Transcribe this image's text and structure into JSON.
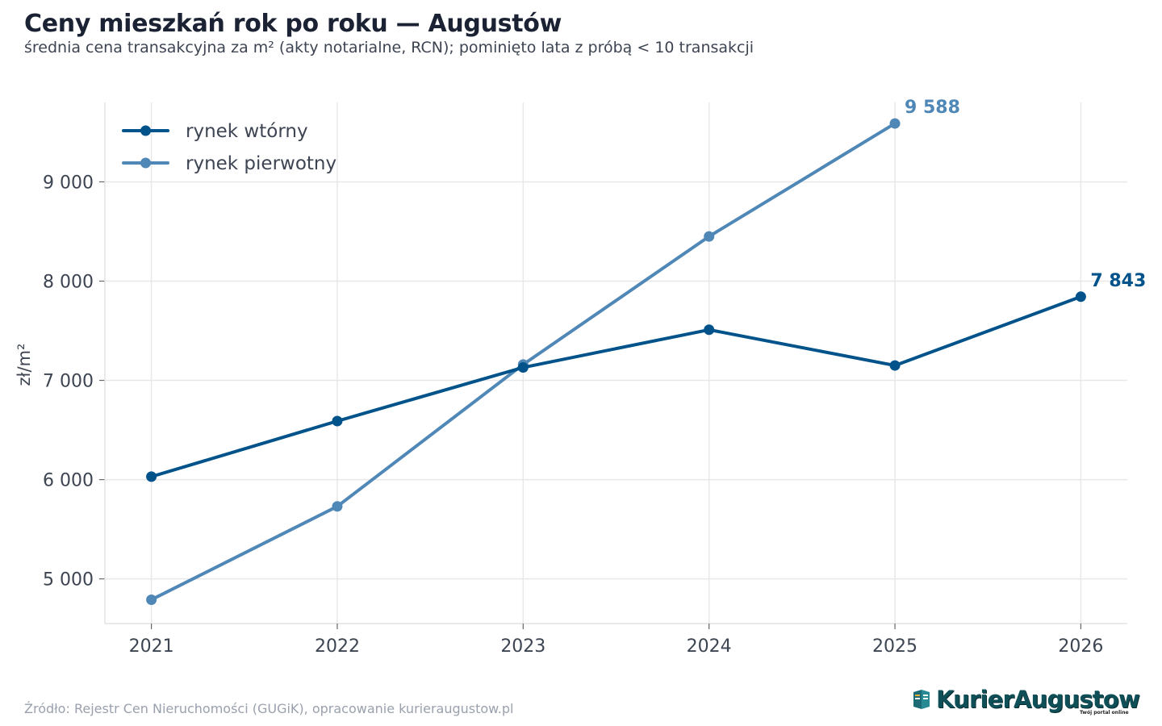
{
  "header": {
    "title": "Ceny mieszkań rok po roku — Augustów",
    "subtitle": "średnia cena transakcyjna za m² (akty notarialne, RCN); pominięto lata z próbą < 10 transakcji"
  },
  "footer": {
    "source": "Źródło: Rejestr Cen Nieruchomości (GUGiK), opracowanie kurieraugustow.pl",
    "logo_text": "KurierAugustow",
    "logo_tagline": "Twój portal online"
  },
  "chart_data": {
    "type": "line",
    "title": "Ceny mieszkań rok po roku — Augustów",
    "subtitle": "średnia cena transakcyjna za m² (akty notarialne, RCN); pominięto lata z próbą < 10 transakcji",
    "xlabel": "",
    "ylabel": "zł/m²",
    "x": [
      2021,
      2022,
      2023,
      2024,
      2025,
      2026
    ],
    "x_tick_labels": [
      "2021",
      "2022",
      "2023",
      "2024",
      "2025",
      "2026"
    ],
    "xlim": [
      2020.75,
      2026.25
    ],
    "ylim": [
      4550,
      9800
    ],
    "y_ticks": [
      5000,
      6000,
      7000,
      8000,
      9000
    ],
    "y_tick_labels": [
      "5 000",
      "6 000",
      "7 000",
      "8 000",
      "9 000"
    ],
    "grid": true,
    "legend_position": "top-left",
    "series": [
      {
        "name": "rynek wtórny",
        "color": "#00538a",
        "values": [
          6030,
          6590,
          7130,
          7510,
          7150,
          7843
        ],
        "end_label": "7 843"
      },
      {
        "name": "rynek pierwotny",
        "color": "#4f87b7",
        "values": [
          4790,
          5730,
          7160,
          8450,
          9588,
          null
        ],
        "end_label": "9 588"
      }
    ]
  }
}
